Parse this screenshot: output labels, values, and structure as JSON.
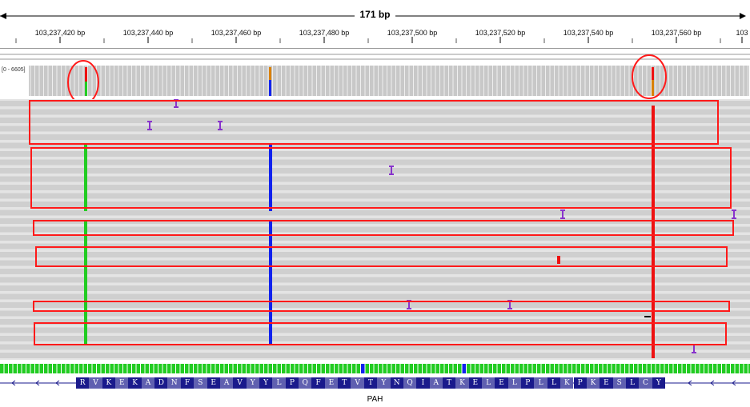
{
  "ruler": {
    "span": "171 bp",
    "ticks": [
      "103,237,420 bp",
      "103,237,440 bp",
      "103,237,460 bp",
      "103,237,480 bp",
      "103,237,500 bp",
      "103,237,520 bp",
      "103,237,540 bp",
      "103,237,560 bp",
      "103"
    ]
  },
  "coverage": {
    "range": "[0 - 6605]"
  },
  "gene": {
    "name": "PAH",
    "amino_acids": [
      "R",
      "V",
      "K",
      "E",
      "K",
      "A",
      "D",
      "N",
      "F",
      "S",
      "E",
      "A",
      "V",
      "Y",
      "Y",
      "L",
      "P",
      "Q",
      "F",
      "E",
      "T",
      "V",
      "T",
      "Y",
      "N",
      "Q",
      "I",
      "A",
      "T",
      "K",
      "E",
      "L",
      "E",
      "L",
      "P",
      "L",
      "L",
      "K",
      "P",
      "K",
      "E",
      "S",
      "L",
      "C",
      "Y"
    ]
  },
  "colors": {
    "read": "#cfcfcf",
    "read_bg": "#e4e4e4",
    "highlight": "#ff1a1a",
    "base_A": "#22cc22",
    "base_C": "#1122ee",
    "base_G": "#d98000",
    "base_T": "#ee1111",
    "insertion": "#8833cc",
    "aa_dark": "#1a1a8c",
    "aa_light": "#6060b0"
  }
}
